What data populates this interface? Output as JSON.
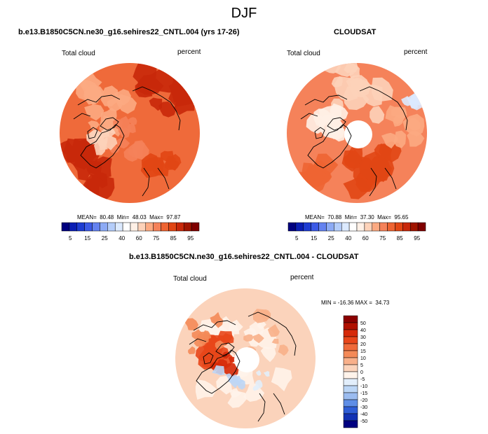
{
  "page_title": "DJF",
  "chart_data": [
    {
      "type": "polar-contour-map",
      "projection": "north polar stereographic",
      "title": "b.e13.B1850C5CN.ne30_g16.sehires22_CNTL.004 (yrs 17-26)",
      "left_label": "Total cloud",
      "right_label": "percent",
      "stats_text": "MEAN=  80.48  Min=  48.03  Max=  97.87",
      "stats": {
        "mean": 80.48,
        "min": 48.03,
        "max": 97.87
      },
      "colorbar": {
        "orientation": "horizontal",
        "levels": [
          5,
          15,
          25,
          40,
          60,
          75,
          85,
          95
        ],
        "tick_labels": [
          "5",
          "15",
          "25",
          "40",
          "60",
          "75",
          "85",
          "95"
        ],
        "colors": [
          "#00007f",
          "#0a1eb4",
          "#1e3cd2",
          "#3c5ae6",
          "#6482f0",
          "#8caaf5",
          "#b4cdfa",
          "#dceaff",
          "#ffffff",
          "#fff0e6",
          "#fdd2b9",
          "#fcaa82",
          "#f5825a",
          "#ee6432",
          "#e14614",
          "#c8280a",
          "#a01400",
          "#7f0000"
        ]
      }
    },
    {
      "type": "polar-contour-map",
      "projection": "north polar stereographic",
      "title": "CLOUDSAT",
      "left_label": "Total cloud",
      "right_label": "percent",
      "stats_text": "MEAN=  70.88  Min=  37.30  Max=  95.65",
      "stats": {
        "mean": 70.88,
        "min": 37.3,
        "max": 95.65
      },
      "colorbar": {
        "orientation": "horizontal",
        "levels": [
          5,
          15,
          25,
          40,
          60,
          75,
          85,
          95
        ],
        "tick_labels": [
          "5",
          "15",
          "25",
          "40",
          "60",
          "75",
          "85",
          "95"
        ],
        "colors": [
          "#00007f",
          "#0a1eb4",
          "#1e3cd2",
          "#3c5ae6",
          "#6482f0",
          "#8caaf5",
          "#b4cdfa",
          "#dceaff",
          "#ffffff",
          "#fff0e6",
          "#fdd2b9",
          "#fcaa82",
          "#f5825a",
          "#ee6432",
          "#e14614",
          "#c8280a",
          "#a01400",
          "#7f0000"
        ]
      }
    },
    {
      "type": "polar-contour-map",
      "projection": "north polar stereographic",
      "title": "b.e13.B1850C5CN.ne30_g16.sehires22_CNTL.004 - CLOUDSAT",
      "left_label": "Total cloud",
      "right_label": "percent",
      "stats_text": "MIN = -16.36 MAX =  34.73",
      "stats": {
        "min": -16.36,
        "max": 34.73
      },
      "colorbar": {
        "orientation": "vertical",
        "levels": [
          50,
          40,
          30,
          20,
          15,
          10,
          5,
          0,
          -5,
          -10,
          -15,
          -20,
          -30,
          -40,
          -50
        ],
        "tick_labels": [
          "50",
          "40",
          "30",
          "20",
          "15",
          "10",
          "5",
          "0",
          "-5",
          "-10",
          "-15",
          "-20",
          "-30",
          "-40",
          "-50"
        ],
        "colors": [
          "#8b0000",
          "#b01000",
          "#d62a0a",
          "#e8461a",
          "#ef6a3a",
          "#f48a58",
          "#f8b08a",
          "#fbd3bb",
          "#fff3ea",
          "#e2eefb",
          "#bcd6f6",
          "#9bbcf0",
          "#5f8ee6",
          "#2f5ed6",
          "#1232b4",
          "#000080"
        ]
      }
    }
  ]
}
